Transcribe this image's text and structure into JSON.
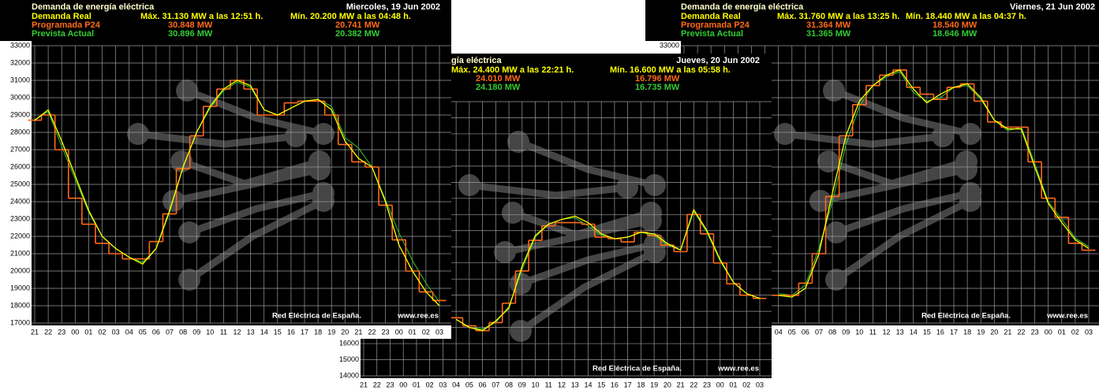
{
  "chart_data": [
    {
      "type": "line",
      "title": "Demanda de energía eléctrica",
      "date": "Miercoles, 19 Jun 2002",
      "categories": [
        "21",
        "22",
        "23",
        "00",
        "01",
        "02",
        "03",
        "04",
        "05",
        "06",
        "07",
        "08",
        "09",
        "10",
        "11",
        "12",
        "13",
        "14",
        "15",
        "16",
        "17",
        "18",
        "19",
        "20",
        "21",
        "22",
        "23",
        "00",
        "01",
        "02",
        "03"
      ],
      "series": [
        {
          "name": "Demanda Real",
          "color": "#ffff00",
          "max_label": "Máx. 31.130 MW a las 12:51 h.",
          "min_label": "Mín. 20.200 MW a las 04:48 h.",
          "values": [
            28700,
            29300,
            27500,
            25500,
            23500,
            22000,
            21300,
            20800,
            20400,
            21300,
            23500,
            26000,
            28000,
            29500,
            30500,
            31000,
            30700,
            29300,
            29000,
            29400,
            29800,
            29900,
            29300,
            27500,
            26500,
            26000,
            24000,
            21500,
            20000,
            18800,
            18000
          ]
        },
        {
          "name": "Programada P24",
          "color": "#ff6a1a",
          "step": true,
          "max_label": "30.848 MW",
          "min_label": "20.741 MW",
          "values": [
            28700,
            29000,
            27000,
            24200,
            22700,
            21600,
            21000,
            20700,
            20700,
            21700,
            23300,
            25900,
            27800,
            29500,
            30500,
            31000,
            30500,
            29000,
            29000,
            29700,
            29800,
            29800,
            29000,
            27300,
            26300,
            26000,
            23800,
            21800,
            20000,
            18800,
            18300
          ]
        },
        {
          "name": "Prevista Actual",
          "color": "#33cc33",
          "max_label": "30.896 MW",
          "min_label": "20.382 MW",
          "values": [
            28700,
            29200,
            27200,
            25300,
            23400,
            22000,
            21300,
            20800,
            20500,
            21300,
            23400,
            26000,
            28000,
            29400,
            30400,
            30900,
            30600,
            29300,
            29000,
            29400,
            29800,
            29900,
            29500,
            27700,
            27100,
            26000,
            24100,
            22200,
            20600,
            19300,
            18200
          ]
        }
      ],
      "ylim": [
        17000,
        33000
      ],
      "yticks": [
        17000,
        18000,
        19000,
        20000,
        21000,
        22000,
        23000,
        24000,
        25000,
        26000,
        27000,
        28000,
        29000,
        30000,
        31000,
        32000,
        33000
      ],
      "grid": true,
      "grid_step": 1000,
      "source": "Red Eléctrica de España.",
      "url": "www.ree.es"
    },
    {
      "type": "line",
      "title": "gía eléctrica",
      "date": "Jueves, 20 Jun 2002",
      "categories": [
        "21",
        "22",
        "23",
        "00",
        "01",
        "02",
        "03",
        "04",
        "05",
        "06",
        "07",
        "08",
        "09",
        "10",
        "11",
        "12",
        "13",
        "14",
        "15",
        "16",
        "17",
        "18",
        "19",
        "20",
        "21",
        "22",
        "23",
        "00",
        "01",
        "02",
        "03"
      ],
      "series": [
        {
          "color": "#ffff00",
          "max_label": "Máx. 24.400 MW a las 22:21 h.",
          "min_label": "Mín. 16.600 MW a las 05:58 h.",
          "values": [
            null,
            null,
            null,
            null,
            null,
            null,
            null,
            17500,
            17000,
            16800,
            17400,
            18200,
            20800,
            22700,
            23400,
            23700,
            23900,
            23500,
            22800,
            22500,
            22600,
            22900,
            22800,
            22200,
            21800,
            24300,
            23000,
            21200,
            19800,
            19100,
            18800
          ]
        },
        {
          "color": "#ff6a1a",
          "step": true,
          "max_label": "24.010 MW",
          "min_label": "16.796 MW",
          "values": [
            null,
            null,
            null,
            null,
            null,
            null,
            null,
            17600,
            17100,
            16800,
            17300,
            18500,
            20500,
            22400,
            23300,
            23500,
            23500,
            23400,
            22600,
            22500,
            22300,
            22900,
            22700,
            22100,
            21700,
            24000,
            22800,
            21000,
            19700,
            19000,
            18800
          ]
        },
        {
          "color": "#33cc33",
          "max_label": "24.180 MW",
          "min_label": "16.735 MW",
          "values": [
            null,
            null,
            null,
            null,
            null,
            null,
            null,
            17500,
            17000,
            16900,
            17300,
            18300,
            20600,
            22600,
            23400,
            23700,
            23800,
            23300,
            22700,
            22500,
            22600,
            22900,
            22700,
            22100,
            21800,
            24200,
            22900,
            21100,
            19800,
            19100,
            18800
          ]
        }
      ],
      "ylim": [
        14000,
        31000
      ],
      "yticks": [
        14000,
        15000,
        16000
      ],
      "grid": true,
      "grid_step": 1000,
      "source": "Red Eléctrica de España.",
      "url": "www.ree.es"
    },
    {
      "type": "line",
      "title": "Demanda de energía eléctrica",
      "date": "Viernes, 21 Jun 2002",
      "categories": [
        null,
        null,
        null,
        null,
        null,
        null,
        null,
        "04",
        "05",
        "06",
        "07",
        "08",
        "09",
        "10",
        "11",
        "12",
        "13",
        "14",
        "15",
        "16",
        "17",
        "18",
        "19",
        "20",
        "21",
        "22",
        "23",
        "00",
        "01",
        "02",
        "03"
      ],
      "series": [
        {
          "name": "Demanda Real",
          "color": "#ffff00",
          "max_label": "Máx. 31.760 MW a las 13:25 h.",
          "min_label": "Mín. 18.440 MW a las 04:37 h.",
          "values": [
            null,
            null,
            null,
            null,
            null,
            null,
            null,
            18600,
            18500,
            19000,
            21000,
            24500,
            27800,
            29800,
            30700,
            31300,
            31600,
            30500,
            29700,
            30200,
            30600,
            30800,
            30000,
            28700,
            28200,
            28200,
            26000,
            23900,
            22800,
            21800,
            21300
          ]
        },
        {
          "name": "Programada P24",
          "color": "#ff6a1a",
          "step": true,
          "max_label": "31.364 MW",
          "min_label": "18.540 MW",
          "values": [
            null,
            null,
            null,
            null,
            null,
            null,
            null,
            18600,
            18600,
            19300,
            21000,
            24300,
            27800,
            29600,
            30700,
            31300,
            31600,
            30600,
            30200,
            29900,
            30600,
            30800,
            29800,
            28600,
            28300,
            28300,
            26300,
            24200,
            23100,
            21600,
            21200
          ]
        },
        {
          "name": "Prevista Actual",
          "color": "#33cc33",
          "max_label": "31.365 MW",
          "min_label": "18.646 MW",
          "values": [
            null,
            null,
            null,
            null,
            null,
            null,
            null,
            18700,
            18600,
            19200,
            21300,
            24000,
            27300,
            29500,
            30700,
            31200,
            31500,
            30300,
            29800,
            30000,
            30600,
            30700,
            29900,
            28700,
            28100,
            28300,
            26200,
            24000,
            23000,
            21900,
            21400
          ]
        }
      ],
      "ylim": [
        17000,
        33000
      ],
      "yticks": [
        33000
      ],
      "grid": true,
      "grid_step": 1000,
      "source": "Red Eléctrica de España.",
      "url": "www.ree.es"
    }
  ]
}
